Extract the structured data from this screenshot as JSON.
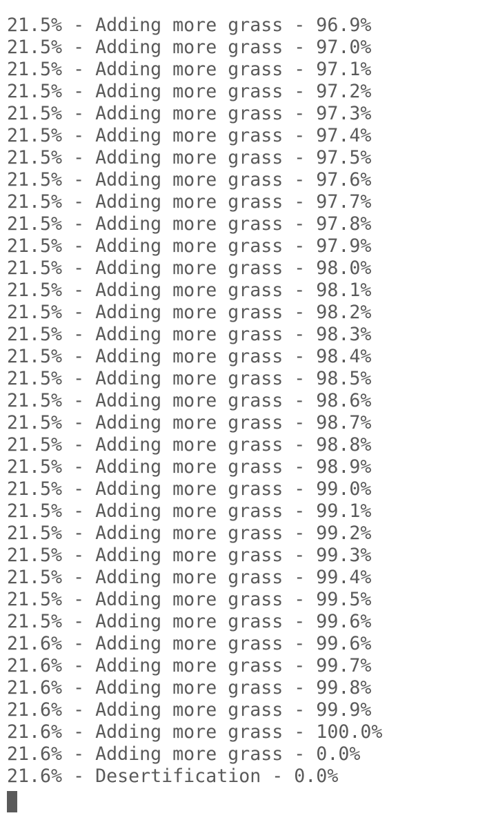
{
  "terminal": {
    "lines": [
      "21.5% - Adding more grass - 96.9%",
      "21.5% - Adding more grass - 97.0%",
      "21.5% - Adding more grass - 97.1%",
      "21.5% - Adding more grass - 97.2%",
      "21.5% - Adding more grass - 97.3%",
      "21.5% - Adding more grass - 97.4%",
      "21.5% - Adding more grass - 97.5%",
      "21.5% - Adding more grass - 97.6%",
      "21.5% - Adding more grass - 97.7%",
      "21.5% - Adding more grass - 97.8%",
      "21.5% - Adding more grass - 97.9%",
      "21.5% - Adding more grass - 98.0%",
      "21.5% - Adding more grass - 98.1%",
      "21.5% - Adding more grass - 98.2%",
      "21.5% - Adding more grass - 98.3%",
      "21.5% - Adding more grass - 98.4%",
      "21.5% - Adding more grass - 98.5%",
      "21.5% - Adding more grass - 98.6%",
      "21.5% - Adding more grass - 98.7%",
      "21.5% - Adding more grass - 98.8%",
      "21.5% - Adding more grass - 98.9%",
      "21.5% - Adding more grass - 99.0%",
      "21.5% - Adding more grass - 99.1%",
      "21.5% - Adding more grass - 99.2%",
      "21.5% - Adding more grass - 99.3%",
      "21.5% - Adding more grass - 99.4%",
      "21.5% - Adding more grass - 99.5%",
      "21.5% - Adding more grass - 99.6%",
      "21.6% - Adding more grass - 99.6%",
      "21.6% - Adding more grass - 99.7%",
      "21.6% - Adding more grass - 99.8%",
      "21.6% - Adding more grass - 99.9%",
      "21.6% - Adding more grass - 100.0%",
      "21.6% - Adding more grass - 0.0%",
      "21.6% - Desertification - 0.0%"
    ],
    "text_color": "#5a5a5a",
    "background_color": "#ffffff",
    "cursor_color": "#5a5a5a"
  }
}
